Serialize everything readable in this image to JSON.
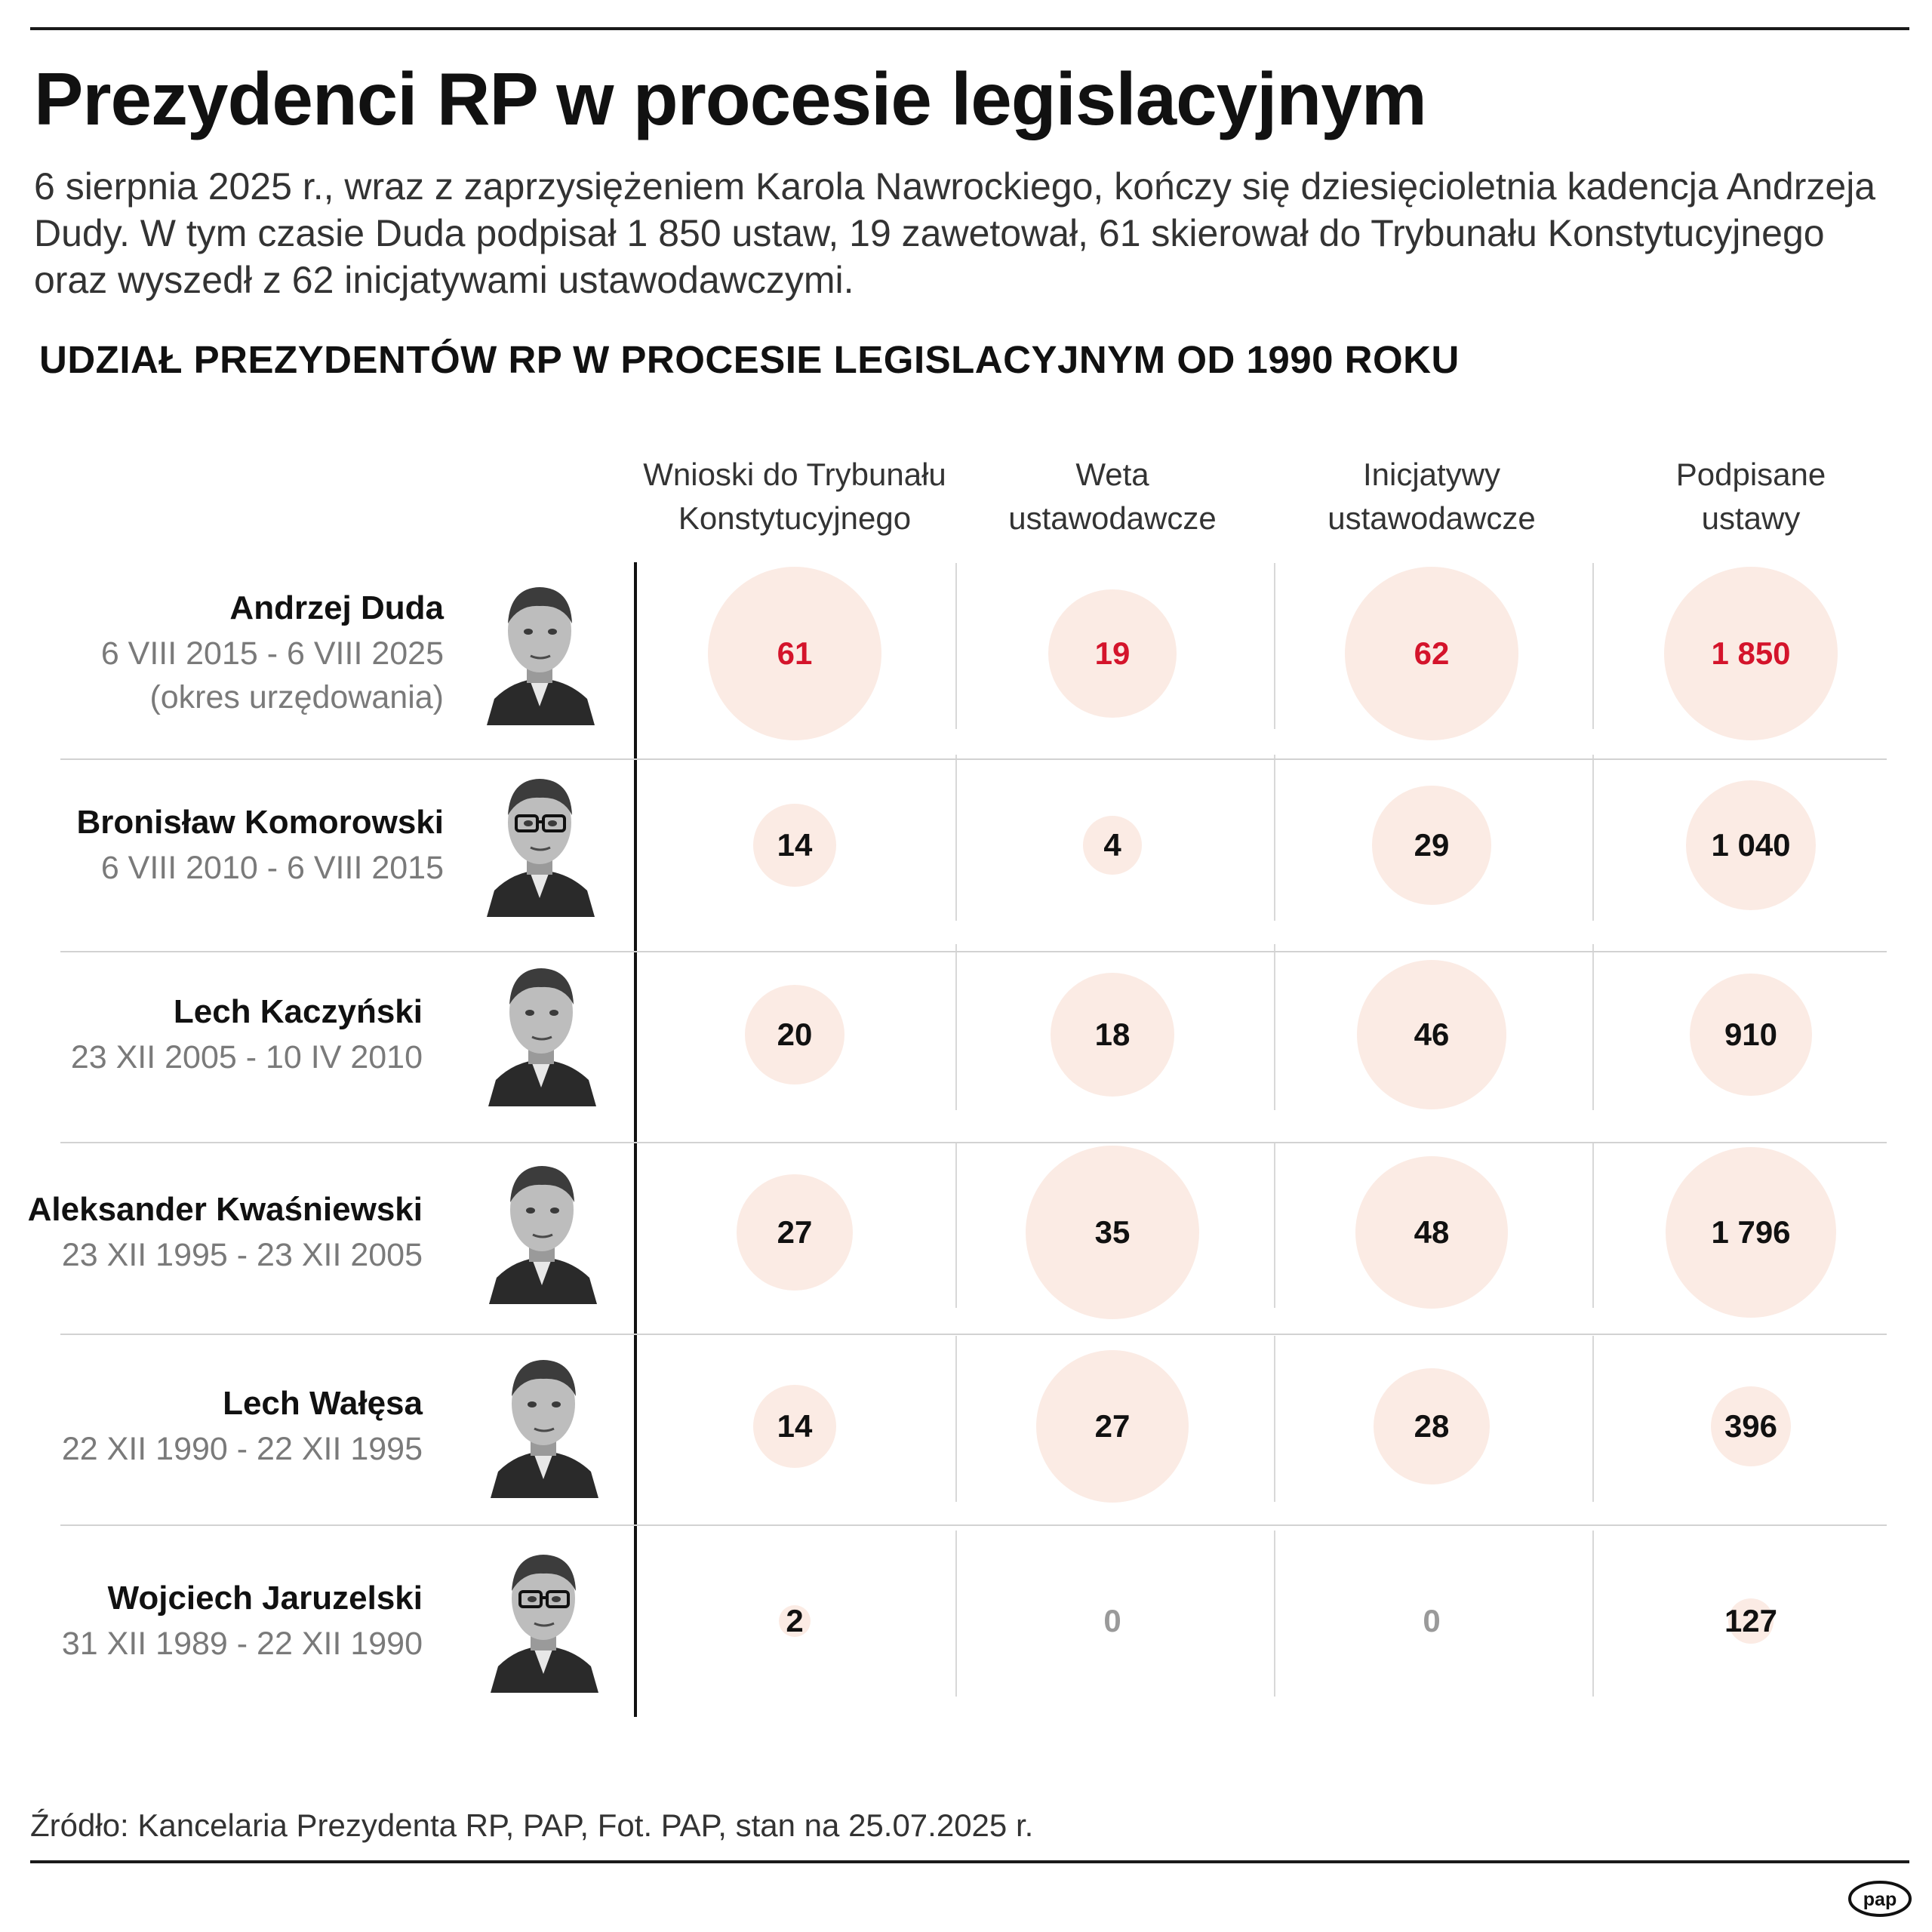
{
  "header": {
    "title": "Prezydenci RP w procesie legislacyjnym",
    "intro": "6 sierpnia 2025 r., wraz z zaprzysiężeniem Karola Nawrockiego, kończy się dziesięcioletnia kadencja Andrzeja Dudy. W tym czasie Duda podpisał 1 850 ustaw, 19 zawetował, 61 skierował do Trybunału Konstytucyjnego oraz wyszedł z 62 inicjatywami ustawodawczymi."
  },
  "colors": {
    "bubble": "#fbebe4",
    "highlight": "#d4142b",
    "zero": "#9a9a9a",
    "text": "#111111"
  },
  "chart_data": {
    "type": "bubble-table",
    "title": "UDZIAŁ PREZYDENTÓW RP W PROCESIE LEGISLACYJNYM OD 1990 ROKU",
    "columns": [
      {
        "key": "tk",
        "label_lines": [
          "Wnioski do Trybunału",
          "Konstytucyjnego"
        ],
        "max": 61
      },
      {
        "key": "veto",
        "label_lines": [
          "Weta",
          "ustawodawcze"
        ],
        "max": 35
      },
      {
        "key": "init",
        "label_lines": [
          "Inicjatywy",
          "ustawodawcze"
        ],
        "max": 62
      },
      {
        "key": "signed",
        "label_lines": [
          "Podpisane",
          "ustawy"
        ],
        "max": 1850
      }
    ],
    "rows": [
      {
        "name": "Andrzej Duda",
        "dates": [
          "6 VIII 2015 - 6 VIII 2025",
          "(okres urzędowania)"
        ],
        "values": [
          61,
          19,
          62,
          1850
        ],
        "labels": [
          "61",
          "19",
          "62",
          "1 850"
        ],
        "highlight": true
      },
      {
        "name": "Bronisław Komorowski",
        "dates": [
          "6 VIII 2010 - 6 VIII 2015"
        ],
        "values": [
          14,
          4,
          29,
          1040
        ],
        "labels": [
          "14",
          "4",
          "29",
          "1 040"
        ],
        "highlight": false
      },
      {
        "name": "Lech Kaczyński",
        "dates": [
          "23 XII 2005 - 10 IV 2010"
        ],
        "values": [
          20,
          18,
          46,
          910
        ],
        "labels": [
          "20",
          "18",
          "46",
          "910"
        ],
        "highlight": false
      },
      {
        "name": "Aleksander Kwaśniewski",
        "dates": [
          "23 XII 1995 - 23 XII 2005"
        ],
        "values": [
          27,
          35,
          48,
          1796
        ],
        "labels": [
          "27",
          "35",
          "48",
          "1 796"
        ],
        "highlight": false
      },
      {
        "name": "Lech Wałęsa",
        "dates": [
          "22 XII 1990 - 22 XII 1995"
        ],
        "values": [
          14,
          27,
          28,
          396
        ],
        "labels": [
          "14",
          "27",
          "28",
          "396"
        ],
        "highlight": false
      },
      {
        "name": "Wojciech Jaruzelski",
        "dates": [
          "31 XII 1989 - 22 XII 1990"
        ],
        "values": [
          2,
          0,
          0,
          127
        ],
        "labels": [
          "2",
          "0",
          "0",
          "127"
        ],
        "highlight": false
      }
    ]
  },
  "footer": {
    "source": "Źródło: Kancelaria Prezydenta RP, PAP, Fot. PAP, stan na 25.07.2025 r.",
    "logo": "pap"
  }
}
